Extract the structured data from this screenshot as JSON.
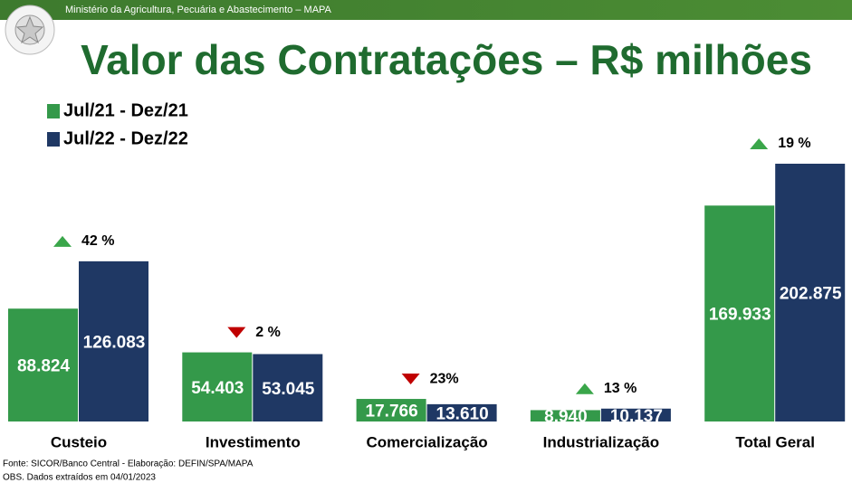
{
  "header": "Ministério da Agricultura, Pecuária e Abastecimento – MAPA",
  "chart_data": {
    "type": "bar",
    "title": "Valor das Contratações – R$ milhões",
    "categories": [
      "Custeio",
      "Investimento",
      "Comercialização",
      "Industrialização",
      "Total Geral"
    ],
    "series": [
      {
        "name": "Jul/21 - Dez/21",
        "color": "#34994a",
        "values": [
          88824,
          54403,
          17766,
          8940,
          169933
        ],
        "value_labels": [
          "88.824",
          "54.403",
          "17.766",
          "8.940",
          "169.933"
        ]
      },
      {
        "name": "Jul/22 - Dez/22",
        "color": "#1f3864",
        "values": [
          126083,
          53045,
          13610,
          10137,
          202875
        ],
        "value_labels": [
          "126.083",
          "53.045",
          "13.610",
          "10.137",
          "202.875"
        ]
      }
    ],
    "change_labels": [
      "42 %",
      "2 %",
      "23%",
      "13 %",
      "19 %"
    ],
    "change_directions": [
      "up",
      "down",
      "down",
      "up",
      "up"
    ],
    "legend": "top-left"
  },
  "footnotes": [
    "Fonte: SICOR/Banco Central - Elaboração: DEFIN/SPA/MAPA",
    "OBS. Dados extraídos em 04/01/2023"
  ]
}
